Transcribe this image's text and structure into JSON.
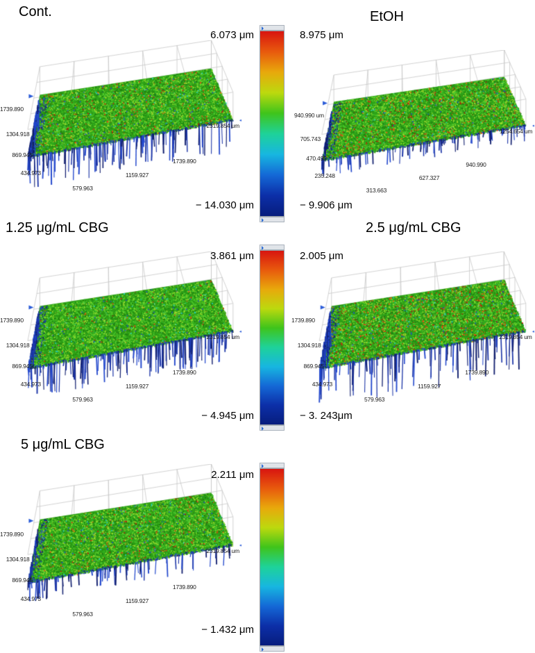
{
  "figure": {
    "panels": [
      {
        "title": "Cont.",
        "left_ticks": [
          "1739.890",
          "1304.918",
          "869.945",
          "434.973"
        ],
        "bottom_ticks": [
          "579.963",
          "1159.927",
          "1739.890"
        ],
        "right_ticks": [
          "2319.854 um"
        ],
        "surface": {
          "red_density": 0.05,
          "drip_len": 42,
          "drips": 150
        }
      },
      {
        "title": "EtOH",
        "left_ticks": [
          "940.990 um",
          "705.743",
          "470.495",
          "235.248"
        ],
        "bottom_ticks": [
          "313.663",
          "627.327",
          "940.990"
        ],
        "right_ticks": [
          "1254.654 um"
        ],
        "surface": {
          "red_density": 0.08,
          "drip_len": 20,
          "drips": 100
        }
      },
      {
        "title": "1.25 μg/mL CBG",
        "left_ticks": [
          "1739.890",
          "1304.918",
          "869.945",
          "434.973"
        ],
        "bottom_ticks": [
          "579.963",
          "1159.927",
          "1739.890"
        ],
        "right_ticks": [
          "2319.854 um"
        ],
        "surface": {
          "red_density": 0.018,
          "drip_len": 40,
          "drips": 170
        }
      },
      {
        "title": "2.5 μg/mL CBG",
        "left_ticks": [
          "1739.890",
          "1304.918",
          "869.945",
          "434.973"
        ],
        "bottom_ticks": [
          "579.963",
          "1159.927",
          "1739.890"
        ],
        "right_ticks": [
          "2319.854 um"
        ],
        "surface": {
          "red_density": 0.1,
          "drip_len": 55,
          "drips": 120
        }
      },
      {
        "title": "5 μg/mL CBG",
        "left_ticks": [
          "1739.890",
          "1304.918",
          "869.945",
          "434.973"
        ],
        "bottom_ticks": [
          "579.963",
          "1159.927",
          "1739.890"
        ],
        "right_ticks": [
          "2319.854 um"
        ],
        "surface": {
          "red_density": 0.045,
          "drip_len": 24,
          "drips": 85
        }
      }
    ],
    "colorbars": [
      {
        "left_max": "6.073 μm",
        "right_max": "8.975 μm",
        "left_min": "− 14.030 μm",
        "right_min": "− 9.906 μm"
      },
      {
        "left_max": "3.861 μm",
        "right_max": "2.005 μm",
        "left_min": "− 4.945 μm",
        "right_min": "− 3. 243μm"
      },
      {
        "left_max": "2.211 μm",
        "left_min": "− 1.432 μm"
      }
    ],
    "colors": {
      "gradient": [
        "#d81510",
        "#e85a0d",
        "#e8a90c",
        "#bcd90e",
        "#3fc41b",
        "#1ed29a",
        "#17b6e0",
        "#1468d6",
        "#0c2fa8",
        "#071d7d"
      ],
      "surface_green": "#2f9f18",
      "surface_red": "#e02010",
      "surface_blue": "#16247e",
      "wireframe": "#c6c6c6",
      "arrow_blue": "#2a5bd8"
    }
  }
}
